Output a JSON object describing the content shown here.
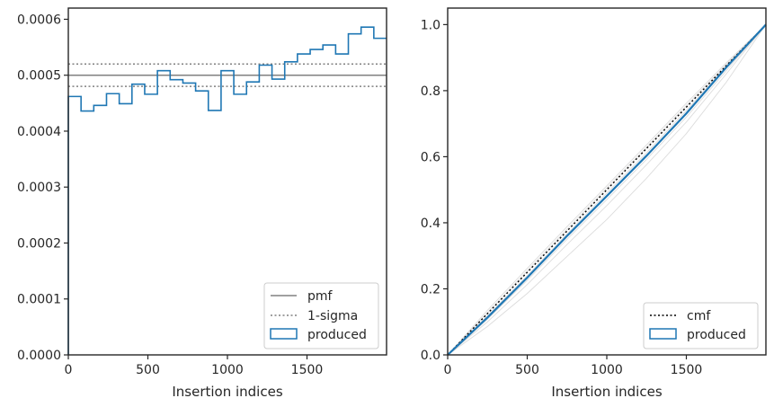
{
  "chart_data": [
    {
      "type": "step",
      "xlabel": "Insertion indices",
      "ylabel": "",
      "xlim": [
        0,
        2000
      ],
      "ylim": [
        0,
        0.00062
      ],
      "xticks": [
        0,
        500,
        1000,
        1500
      ],
      "xtick_labels": [
        "0",
        "500",
        "1000",
        "1500"
      ],
      "yticks": [
        0,
        0.0001,
        0.0002,
        0.0003,
        0.0004,
        0.0005,
        0.0006
      ],
      "ytick_labels": [
        "0.0000",
        "0.0001",
        "0.0002",
        "0.0003",
        "0.0004",
        "0.0005",
        "0.0006"
      ],
      "bin_edges": [
        0,
        80,
        160,
        240,
        320,
        400,
        480,
        560,
        640,
        720,
        800,
        880,
        960,
        1040,
        1120,
        1200,
        1280,
        1360,
        1440,
        1520,
        1600,
        1680,
        1760,
        1840,
        1920,
        2000
      ],
      "series": [
        {
          "name": "produced",
          "color": "#1f77b4",
          "values": [
            0.000462,
            0.000436,
            0.000446,
            0.000467,
            0.000449,
            0.000484,
            0.000466,
            0.000508,
            0.000492,
            0.000486,
            0.000472,
            0.000437,
            0.000508,
            0.000466,
            0.000488,
            0.000518,
            0.000493,
            0.000524,
            0.000538,
            0.000546,
            0.000554,
            0.000538,
            0.000574,
            0.000586,
            0.000566
          ]
        }
      ],
      "reference_lines": [
        {
          "name": "pmf",
          "value": 0.0005,
          "color": "#808080",
          "style": "solid"
        },
        {
          "name": "1-sigma",
          "values": [
            0.00048,
            0.00052
          ],
          "color": "#808080",
          "style": "dotted"
        }
      ],
      "legend": {
        "position": "lower-right",
        "entries": [
          "pmf",
          "1-sigma",
          "produced"
        ]
      }
    },
    {
      "type": "line",
      "xlabel": "Insertion indices",
      "ylabel": "",
      "xlim": [
        0,
        2000
      ],
      "ylim": [
        0,
        1.05
      ],
      "xticks": [
        0,
        500,
        1000,
        1500
      ],
      "xtick_labels": [
        "0",
        "500",
        "1000",
        "1500"
      ],
      "yticks": [
        0,
        0.2,
        0.4,
        0.6,
        0.8,
        1.0
      ],
      "ytick_labels": [
        "0.0",
        "0.2",
        "0.4",
        "0.6",
        "0.8",
        "1.0"
      ],
      "series": [
        {
          "name": "cmf",
          "color": "#000000",
          "style": "dotted",
          "x": [
            0,
            2000
          ],
          "y": [
            0,
            1
          ]
        },
        {
          "name": "produced",
          "color": "#1f77b4",
          "style": "solid",
          "x": [
            0,
            250,
            500,
            750,
            1000,
            1250,
            1500,
            1750,
            2000
          ],
          "y": [
            0,
            0.113,
            0.234,
            0.36,
            0.481,
            0.603,
            0.731,
            0.87,
            1.0
          ]
        }
      ],
      "background_curves": {
        "color": "#dcdcdc",
        "x": [
          0,
          250,
          500,
          750,
          1000,
          1250,
          1500,
          1750,
          2000
        ],
        "curves": [
          [
            0,
            0.135,
            0.262,
            0.388,
            0.512,
            0.636,
            0.762,
            0.884,
            1.0
          ],
          [
            0,
            0.128,
            0.255,
            0.38,
            0.505,
            0.629,
            0.755,
            0.879,
            1.0
          ],
          [
            0,
            0.108,
            0.226,
            0.35,
            0.47,
            0.592,
            0.72,
            0.86,
            1.0
          ],
          [
            0,
            0.1,
            0.213,
            0.334,
            0.452,
            0.576,
            0.705,
            0.85,
            1.0
          ],
          [
            0,
            0.086,
            0.186,
            0.298,
            0.41,
            0.535,
            0.67,
            0.825,
            1.0
          ],
          [
            0,
            0.118,
            0.24,
            0.366,
            0.49,
            0.612,
            0.74,
            0.874,
            1.0
          ]
        ]
      },
      "legend": {
        "position": "lower-right",
        "entries": [
          "cmf",
          "produced"
        ]
      }
    }
  ]
}
